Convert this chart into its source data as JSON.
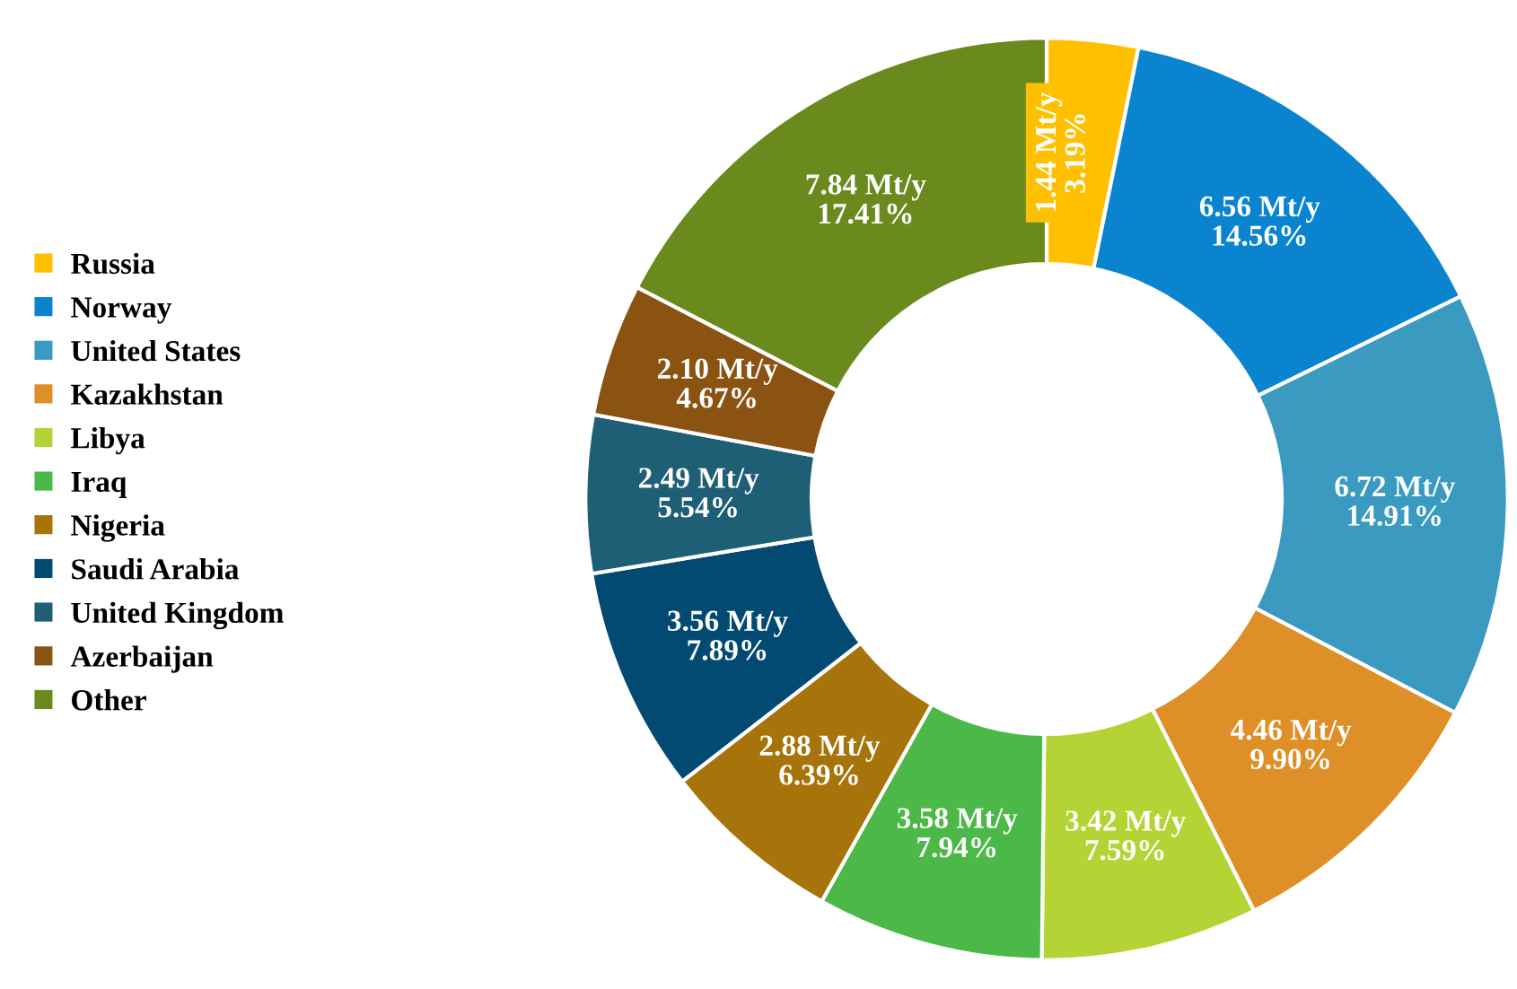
{
  "chart_data": {
    "type": "donut",
    "categories": [
      "Russia",
      "Norway",
      "United States",
      "Kazakhstan",
      "Libya",
      "Iraq",
      "Nigeria",
      "Saudi Arabia",
      "United Kingdom",
      "Azerbaijan",
      "Other"
    ],
    "values": [
      1.44,
      6.56,
      6.72,
      4.46,
      3.42,
      3.58,
      2.88,
      3.56,
      2.49,
      2.1,
      7.84
    ],
    "value_labels": [
      "1.44 Mt/y\n3.19%",
      "6.56 Mt/y\n14.56%",
      "6.72 Mt/y\n14.91%",
      "4.46 Mt/y\n9.90%",
      "3.42 Mt/y\n7.59%",
      "3.58 Mt/y\n7.94%",
      "2.88 Mt/y\n6.39%",
      "3.56 Mt/y\n7.89%",
      "2.49 Mt/y\n5.54%",
      "2.10 Mt/y\n4.67%",
      "7.84 Mt/y\n17.41%"
    ],
    "colors": [
      "#ffc000",
      "#0b84cf",
      "#3a9ac0",
      "#de8f27",
      "#b5d334",
      "#4bb848",
      "#a6740a",
      "#024a72",
      "#1e5f75",
      "#8b5312",
      "#6b8a1e"
    ],
    "legend": "left"
  }
}
